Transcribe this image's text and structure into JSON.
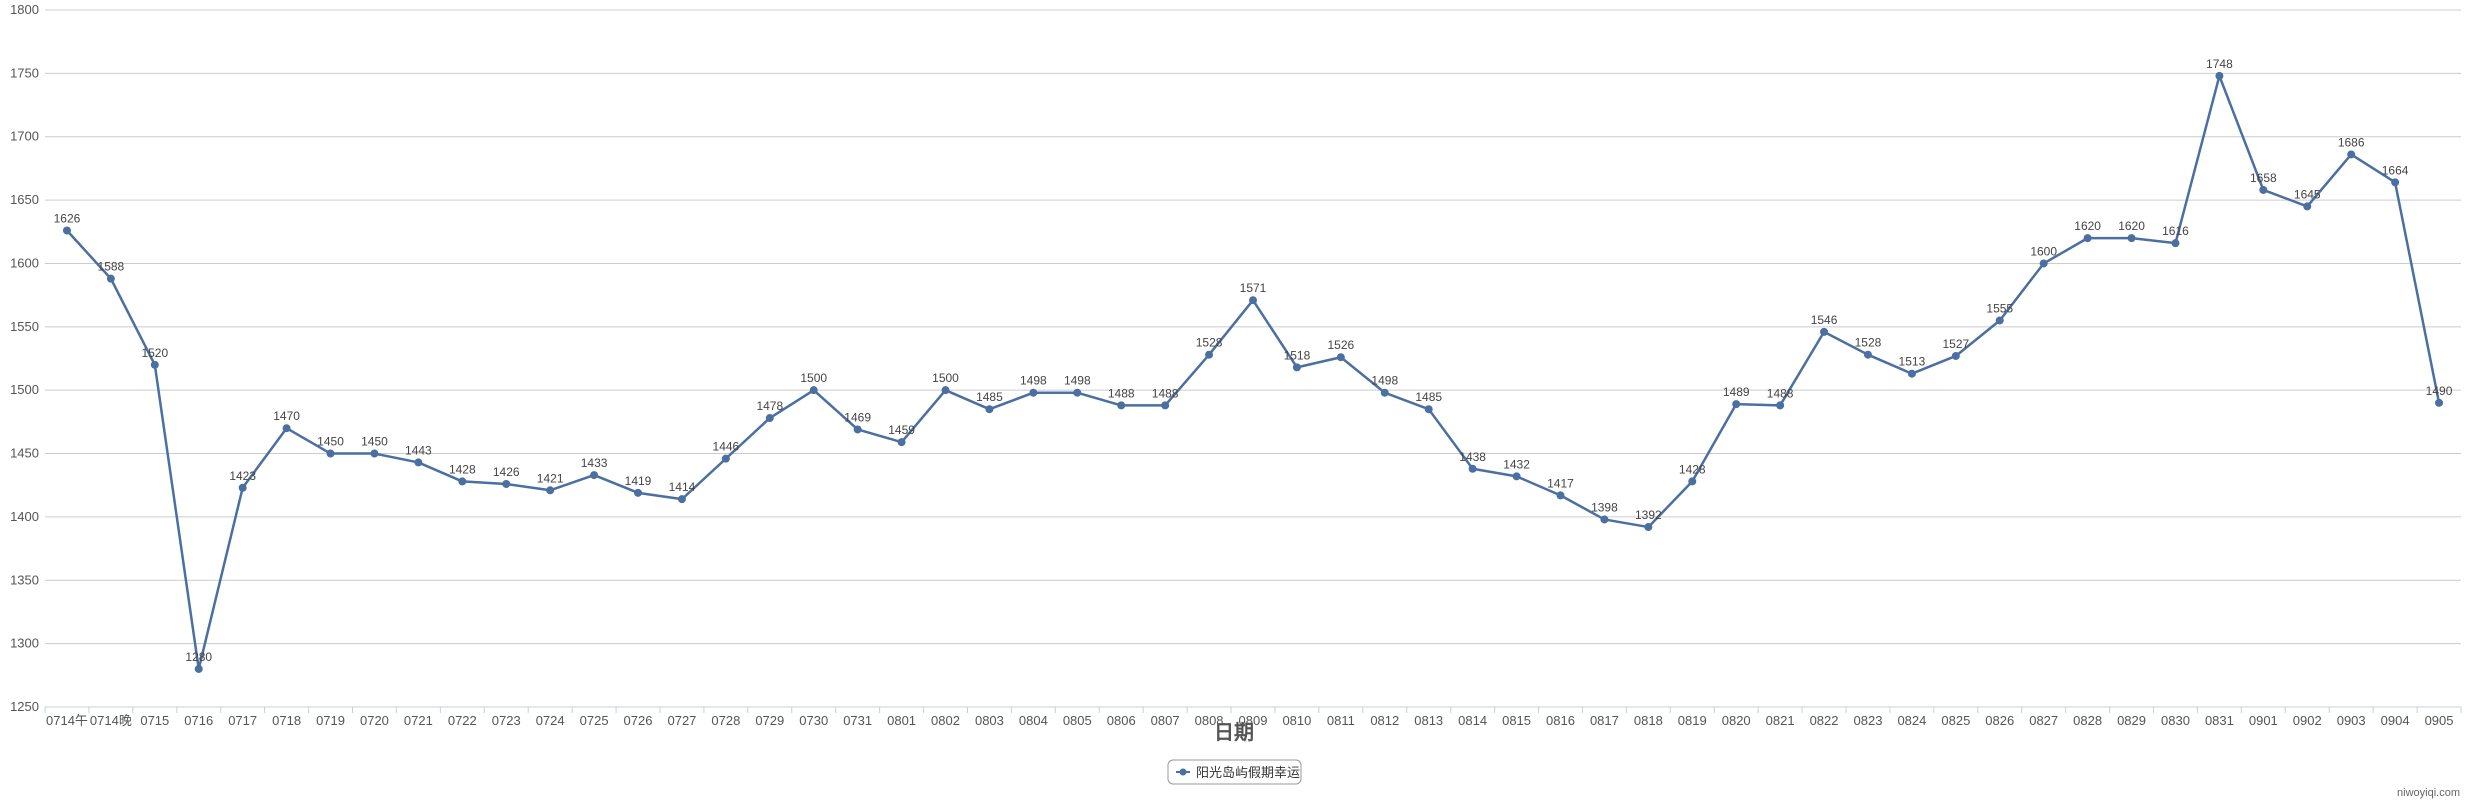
{
  "chart_data": {
    "type": "line",
    "xlabel": "日期",
    "ylim": [
      1250,
      1800
    ],
    "yticks": [
      1250,
      1300,
      1350,
      1400,
      1450,
      1500,
      1550,
      1600,
      1650,
      1700,
      1750,
      1800
    ],
    "grid": true,
    "legend_position": "bottom-center",
    "categories": [
      "0714午",
      "0714晚",
      "0715",
      "0716",
      "0717",
      "0718",
      "0719",
      "0720",
      "0721",
      "0722",
      "0723",
      "0724",
      "0725",
      "0726",
      "0727",
      "0728",
      "0729",
      "0730",
      "0731",
      "0801",
      "0802",
      "0803",
      "0804",
      "0805",
      "0806",
      "0807",
      "0808",
      "0809",
      "0810",
      "0811",
      "0812",
      "0813",
      "0814",
      "0815",
      "0816",
      "0817",
      "0818",
      "0819",
      "0820",
      "0821",
      "0822",
      "0823",
      "0824",
      "0825",
      "0826",
      "0827",
      "0828",
      "0829",
      "0830",
      "0831",
      "0901",
      "0902",
      "0903",
      "0904",
      "0905"
    ],
    "series": [
      {
        "name": "阳光岛屿假期幸运",
        "color": "#4a6fa0",
        "values": [
          1626,
          1588,
          1520,
          1280,
          1423,
          1470,
          1450,
          1450,
          1443,
          1428,
          1426,
          1421,
          1433,
          1419,
          1414,
          1446,
          1478,
          1500,
          1469,
          1459,
          1500,
          1485,
          1498,
          1498,
          1488,
          1488,
          1528,
          1571,
          1518,
          1526,
          1498,
          1485,
          1438,
          1432,
          1417,
          1398,
          1392,
          1428,
          1489,
          1488,
          1546,
          1528,
          1513,
          1527,
          1555,
          1600,
          1620,
          1620,
          1616,
          1748,
          1658,
          1645,
          1686,
          1664,
          1490
        ]
      }
    ]
  },
  "watermark": "niwoyiqi.com"
}
